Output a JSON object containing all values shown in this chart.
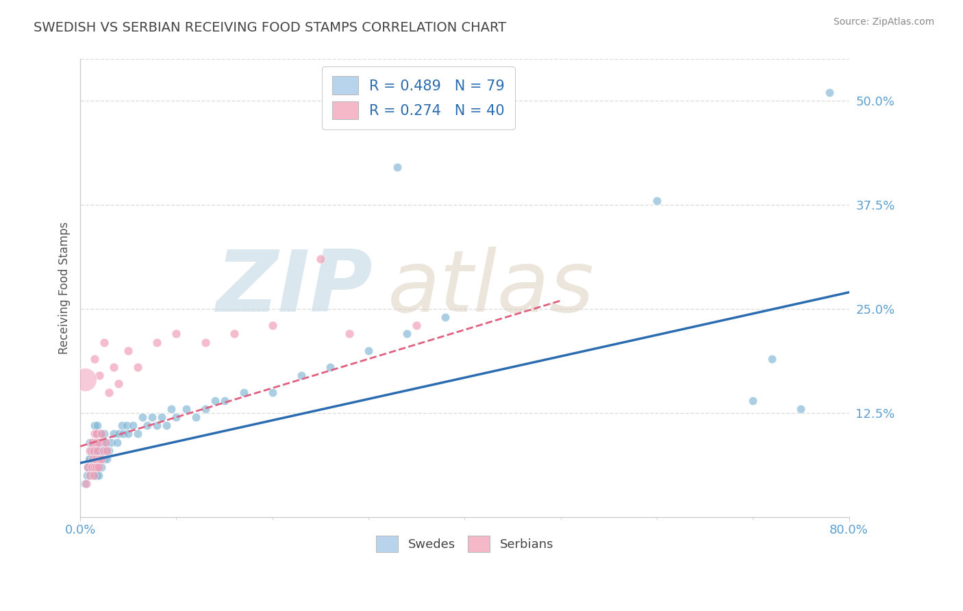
{
  "title": "SWEDISH VS SERBIAN RECEIVING FOOD STAMPS CORRELATION CHART",
  "source": "Source: ZipAtlas.com",
  "ylabel": "Receiving Food Stamps",
  "xlim": [
    0.0,
    0.8
  ],
  "ylim": [
    0.0,
    0.55
  ],
  "ytick_labels": [
    "12.5%",
    "25.0%",
    "37.5%",
    "50.0%"
  ],
  "ytick_values": [
    0.125,
    0.25,
    0.375,
    0.5
  ],
  "legend_r_swedish": "R = 0.489",
  "legend_n_swedish": "N = 79",
  "legend_r_serbian": "R = 0.274",
  "legend_n_serbian": "N = 40",
  "swedish_scatter": [
    [
      0.005,
      0.04
    ],
    [
      0.007,
      0.05
    ],
    [
      0.008,
      0.06
    ],
    [
      0.009,
      0.07
    ],
    [
      0.01,
      0.05
    ],
    [
      0.01,
      0.07
    ],
    [
      0.01,
      0.09
    ],
    [
      0.012,
      0.06
    ],
    [
      0.012,
      0.08
    ],
    [
      0.013,
      0.05
    ],
    [
      0.013,
      0.07
    ],
    [
      0.013,
      0.09
    ],
    [
      0.014,
      0.06
    ],
    [
      0.014,
      0.08
    ],
    [
      0.015,
      0.05
    ],
    [
      0.015,
      0.07
    ],
    [
      0.015,
      0.09
    ],
    [
      0.015,
      0.11
    ],
    [
      0.016,
      0.06
    ],
    [
      0.016,
      0.08
    ],
    [
      0.017,
      0.05
    ],
    [
      0.017,
      0.07
    ],
    [
      0.017,
      0.1
    ],
    [
      0.018,
      0.06
    ],
    [
      0.018,
      0.08
    ],
    [
      0.018,
      0.11
    ],
    [
      0.019,
      0.05
    ],
    [
      0.019,
      0.08
    ],
    [
      0.02,
      0.06
    ],
    [
      0.02,
      0.09
    ],
    [
      0.021,
      0.07
    ],
    [
      0.021,
      0.1
    ],
    [
      0.022,
      0.06
    ],
    [
      0.022,
      0.08
    ],
    [
      0.023,
      0.07
    ],
    [
      0.023,
      0.09
    ],
    [
      0.024,
      0.08
    ],
    [
      0.025,
      0.07
    ],
    [
      0.025,
      0.1
    ],
    [
      0.026,
      0.08
    ],
    [
      0.027,
      0.09
    ],
    [
      0.028,
      0.07
    ],
    [
      0.03,
      0.08
    ],
    [
      0.032,
      0.09
    ],
    [
      0.035,
      0.1
    ],
    [
      0.038,
      0.09
    ],
    [
      0.04,
      0.1
    ],
    [
      0.043,
      0.11
    ],
    [
      0.045,
      0.1
    ],
    [
      0.048,
      0.11
    ],
    [
      0.05,
      0.1
    ],
    [
      0.055,
      0.11
    ],
    [
      0.06,
      0.1
    ],
    [
      0.065,
      0.12
    ],
    [
      0.07,
      0.11
    ],
    [
      0.075,
      0.12
    ],
    [
      0.08,
      0.11
    ],
    [
      0.085,
      0.12
    ],
    [
      0.09,
      0.11
    ],
    [
      0.095,
      0.13
    ],
    [
      0.1,
      0.12
    ],
    [
      0.11,
      0.13
    ],
    [
      0.12,
      0.12
    ],
    [
      0.13,
      0.13
    ],
    [
      0.14,
      0.14
    ],
    [
      0.15,
      0.14
    ],
    [
      0.17,
      0.15
    ],
    [
      0.2,
      0.15
    ],
    [
      0.23,
      0.17
    ],
    [
      0.26,
      0.18
    ],
    [
      0.3,
      0.2
    ],
    [
      0.34,
      0.22
    ],
    [
      0.38,
      0.24
    ],
    [
      0.33,
      0.42
    ],
    [
      0.6,
      0.38
    ],
    [
      0.7,
      0.14
    ],
    [
      0.75,
      0.13
    ],
    [
      0.72,
      0.19
    ],
    [
      0.78,
      0.51
    ]
  ],
  "serbian_scatter": [
    [
      0.006,
      0.04
    ],
    [
      0.008,
      0.06
    ],
    [
      0.01,
      0.05
    ],
    [
      0.01,
      0.08
    ],
    [
      0.012,
      0.06
    ],
    [
      0.012,
      0.09
    ],
    [
      0.013,
      0.07
    ],
    [
      0.014,
      0.05
    ],
    [
      0.014,
      0.08
    ],
    [
      0.015,
      0.06
    ],
    [
      0.015,
      0.1
    ],
    [
      0.016,
      0.07
    ],
    [
      0.016,
      0.09
    ],
    [
      0.017,
      0.06
    ],
    [
      0.017,
      0.1
    ],
    [
      0.018,
      0.08
    ],
    [
      0.019,
      0.06
    ],
    [
      0.019,
      0.09
    ],
    [
      0.02,
      0.07
    ],
    [
      0.02,
      0.17
    ],
    [
      0.022,
      0.07
    ],
    [
      0.022,
      0.1
    ],
    [
      0.024,
      0.08
    ],
    [
      0.026,
      0.09
    ],
    [
      0.028,
      0.08
    ],
    [
      0.03,
      0.15
    ],
    [
      0.035,
      0.18
    ],
    [
      0.025,
      0.21
    ],
    [
      0.015,
      0.19
    ],
    [
      0.04,
      0.16
    ],
    [
      0.05,
      0.2
    ],
    [
      0.06,
      0.18
    ],
    [
      0.08,
      0.21
    ],
    [
      0.1,
      0.22
    ],
    [
      0.13,
      0.21
    ],
    [
      0.16,
      0.22
    ],
    [
      0.2,
      0.23
    ],
    [
      0.25,
      0.31
    ],
    [
      0.28,
      0.22
    ],
    [
      0.35,
      0.23
    ]
  ],
  "swedish_color": "#7eb5d5",
  "serbian_color": "#f0a0b8",
  "swedish_line_color": "#2b6cb0",
  "serbian_line_color": "#e06080",
  "legend_box_swedish": "#b8d4ec",
  "legend_box_serbian": "#f4b8c8",
  "title_color": "#444444",
  "source_color": "#888888",
  "grid_color": "#dddddd",
  "axis_color": "#cccccc",
  "tick_label_color": "#5b9fd0"
}
